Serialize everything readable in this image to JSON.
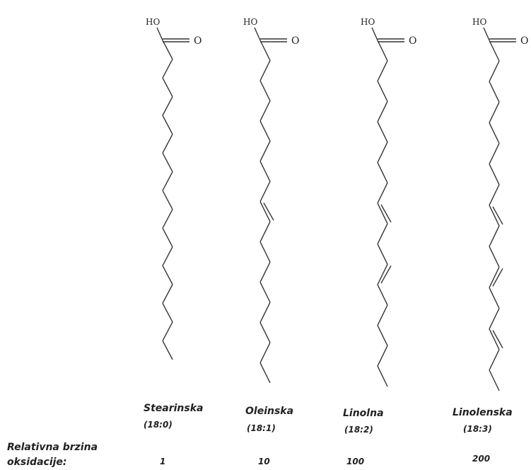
{
  "atoms": {
    "hydroxyl": "HO",
    "oxygen": "O"
  },
  "acids": [
    {
      "name": "Stearinska",
      "ratio": "(18:0)",
      "rate": "1",
      "double_bonds": []
    },
    {
      "name": "Oleinska",
      "ratio": "(18:1)",
      "rate": "10",
      "double_bonds": [
        9
      ]
    },
    {
      "name": "Linolna",
      "ratio": "(18:2)",
      "rate": "100",
      "double_bonds": [
        9,
        12
      ]
    },
    {
      "name": "Linolenska",
      "ratio": "(18:3)",
      "rate": "200",
      "double_bonds": [
        9,
        12,
        15
      ]
    }
  ],
  "rate_label": {
    "line1": "Relativna brzina",
    "line2": "oksidacije:"
  }
}
